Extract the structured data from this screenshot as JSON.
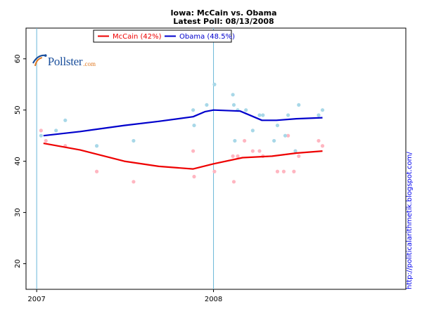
{
  "chart_data": {
    "type": "scatter",
    "title": "Iowa: McCain vs. Obama",
    "subtitle": "Latest Poll: 08/13/2008",
    "xlabel": "",
    "ylabel": "",
    "xlim": [
      "2006-12-10",
      "2009-02-01"
    ],
    "ylim": [
      15,
      66
    ],
    "yticks": [
      20,
      30,
      40,
      50,
      60
    ],
    "xticks": [
      {
        "label": "2007",
        "date": "2007-01-01"
      },
      {
        "label": "2008",
        "date": "2008-01-01"
      }
    ],
    "guide_dates": [
      "2007-01-01",
      "2008-01-01"
    ],
    "grid": false,
    "legend_position": "top",
    "series": [
      {
        "name": "McCain (42%)",
        "color": "#ee0000",
        "point_color": "#ffb6c1",
        "trend": [
          {
            "x": "2007-01-15",
            "y": 43.5
          },
          {
            "x": "2007-04-01",
            "y": 42.2
          },
          {
            "x": "2007-07-01",
            "y": 40.0
          },
          {
            "x": "2007-09-10",
            "y": 39.0
          },
          {
            "x": "2007-11-20",
            "y": 38.5
          },
          {
            "x": "2008-01-01",
            "y": 39.5
          },
          {
            "x": "2008-03-01",
            "y": 40.7
          },
          {
            "x": "2008-05-01",
            "y": 41.0
          },
          {
            "x": "2008-06-20",
            "y": 41.6
          },
          {
            "x": "2008-08-13",
            "y": 42.0
          }
        ],
        "points": [
          {
            "x": "2007-01-10",
            "y": 46
          },
          {
            "x": "2007-01-20",
            "y": 44
          },
          {
            "x": "2007-03-01",
            "y": 43
          },
          {
            "x": "2007-05-05",
            "y": 38
          },
          {
            "x": "2007-07-20",
            "y": 36
          },
          {
            "x": "2007-11-20",
            "y": 42
          },
          {
            "x": "2007-11-22",
            "y": 37
          },
          {
            "x": "2008-01-03",
            "y": 38
          },
          {
            "x": "2008-02-10",
            "y": 41
          },
          {
            "x": "2008-02-12",
            "y": 36
          },
          {
            "x": "2008-02-20",
            "y": 41
          },
          {
            "x": "2008-03-05",
            "y": 44
          },
          {
            "x": "2008-03-22",
            "y": 42
          },
          {
            "x": "2008-04-05",
            "y": 42
          },
          {
            "x": "2008-04-12",
            "y": 41
          },
          {
            "x": "2008-05-12",
            "y": 38
          },
          {
            "x": "2008-05-25",
            "y": 38
          },
          {
            "x": "2008-06-03",
            "y": 45
          },
          {
            "x": "2008-06-15",
            "y": 38
          },
          {
            "x": "2008-06-18",
            "y": 42
          },
          {
            "x": "2008-06-25",
            "y": 41
          },
          {
            "x": "2008-08-05",
            "y": 44
          },
          {
            "x": "2008-08-13",
            "y": 43
          }
        ]
      },
      {
        "name": "Obama (48.5%)",
        "color": "#0000cc",
        "point_color": "#a8d8e8",
        "trend": [
          {
            "x": "2007-01-15",
            "y": 45.0
          },
          {
            "x": "2007-04-01",
            "y": 45.8
          },
          {
            "x": "2007-07-01",
            "y": 47.0
          },
          {
            "x": "2007-09-10",
            "y": 47.8
          },
          {
            "x": "2007-11-20",
            "y": 48.7
          },
          {
            "x": "2007-12-15",
            "y": 49.7
          },
          {
            "x": "2008-01-01",
            "y": 50.0
          },
          {
            "x": "2008-02-25",
            "y": 49.8
          },
          {
            "x": "2008-04-10",
            "y": 48.0
          },
          {
            "x": "2008-05-10",
            "y": 48.0
          },
          {
            "x": "2008-06-20",
            "y": 48.3
          },
          {
            "x": "2008-08-13",
            "y": 48.5
          }
        ],
        "points": [
          {
            "x": "2007-01-10",
            "y": 45
          },
          {
            "x": "2007-02-10",
            "y": 46
          },
          {
            "x": "2007-03-01",
            "y": 48
          },
          {
            "x": "2007-05-05",
            "y": 43
          },
          {
            "x": "2007-07-20",
            "y": 44
          },
          {
            "x": "2007-11-20",
            "y": 50
          },
          {
            "x": "2007-11-22",
            "y": 47
          },
          {
            "x": "2007-12-18",
            "y": 51
          },
          {
            "x": "2008-01-03",
            "y": 55
          },
          {
            "x": "2008-02-10",
            "y": 53
          },
          {
            "x": "2008-02-12",
            "y": 51
          },
          {
            "x": "2008-02-14",
            "y": 44
          },
          {
            "x": "2008-02-20",
            "y": 50
          },
          {
            "x": "2008-03-08",
            "y": 50
          },
          {
            "x": "2008-03-22",
            "y": 46
          },
          {
            "x": "2008-04-05",
            "y": 49
          },
          {
            "x": "2008-04-12",
            "y": 49
          },
          {
            "x": "2008-05-05",
            "y": 44
          },
          {
            "x": "2008-05-12",
            "y": 47
          },
          {
            "x": "2008-05-28",
            "y": 45
          },
          {
            "x": "2008-06-03",
            "y": 49
          },
          {
            "x": "2008-06-18",
            "y": 42
          },
          {
            "x": "2008-06-25",
            "y": 51
          },
          {
            "x": "2008-08-05",
            "y": 49
          },
          {
            "x": "2008-08-13",
            "y": 50
          }
        ]
      }
    ]
  },
  "logo": {
    "text": "Pollster",
    "suffix": ".com",
    "color": "#1a4f9c",
    "accent": "#e07820"
  },
  "credit": "http://politicalarithmetik.blogspot.com/"
}
